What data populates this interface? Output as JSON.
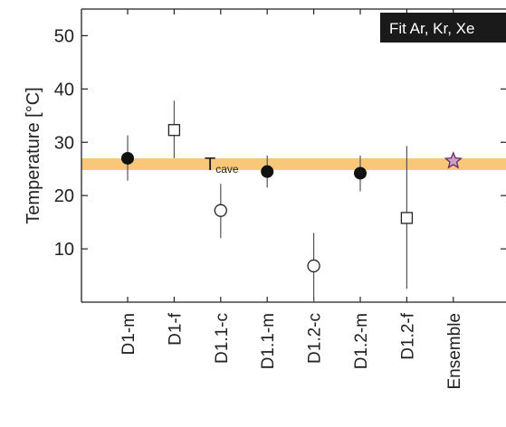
{
  "chart_data": {
    "type": "scatter",
    "ylabel": "Temperature [°C]",
    "xlabel": "",
    "title": "",
    "ylim": [
      0,
      55
    ],
    "yticks": [
      10,
      20,
      30,
      40,
      50
    ],
    "grid": false,
    "categories": [
      "D1-m",
      "D1-f",
      "D1.1-c",
      "D1.1-m",
      "D1.2-c",
      "D1.2-m",
      "D1.2-f",
      "Ensemble"
    ],
    "points": [
      {
        "category": "D1-m",
        "y": 27.0,
        "err_low": 22.8,
        "err_high": 31.3,
        "marker": "filled-circle"
      },
      {
        "category": "D1-f",
        "y": 32.3,
        "err_low": 27.0,
        "err_high": 37.8,
        "marker": "open-square"
      },
      {
        "category": "D1.1-c",
        "y": 17.2,
        "err_low": 12.0,
        "err_high": 22.2,
        "marker": "open-circle"
      },
      {
        "category": "D1.1-m",
        "y": 24.5,
        "err_low": 21.5,
        "err_high": 27.5,
        "marker": "filled-circle"
      },
      {
        "category": "D1.2-c",
        "y": 6.8,
        "err_low": 0.0,
        "err_high": 13.0,
        "marker": "open-circle"
      },
      {
        "category": "D1.2-m",
        "y": 24.2,
        "err_low": 20.8,
        "err_high": 27.5,
        "marker": "filled-circle"
      },
      {
        "category": "D1.2-f",
        "y": 15.8,
        "err_low": 2.5,
        "err_high": 29.3,
        "marker": "open-square"
      },
      {
        "category": "Ensemble",
        "y": 26.5,
        "marker": "star"
      }
    ],
    "band": {
      "label_main": "T",
      "label_sub": "cave",
      "y_low": 24.8,
      "y_high": 27.0,
      "color": "#f8c878"
    },
    "badge": {
      "text": "Fit Ar, Kr, Xe",
      "background": "#1a1a1a",
      "color": "#ffffff"
    },
    "colors": {
      "filled_marker": "#111111",
      "open_marker_fill": "#ffffff",
      "star_fill": "#c9a0c8",
      "star_stroke": "#6a2a6a",
      "error_bar": "#555555",
      "axis": "#222222"
    }
  }
}
